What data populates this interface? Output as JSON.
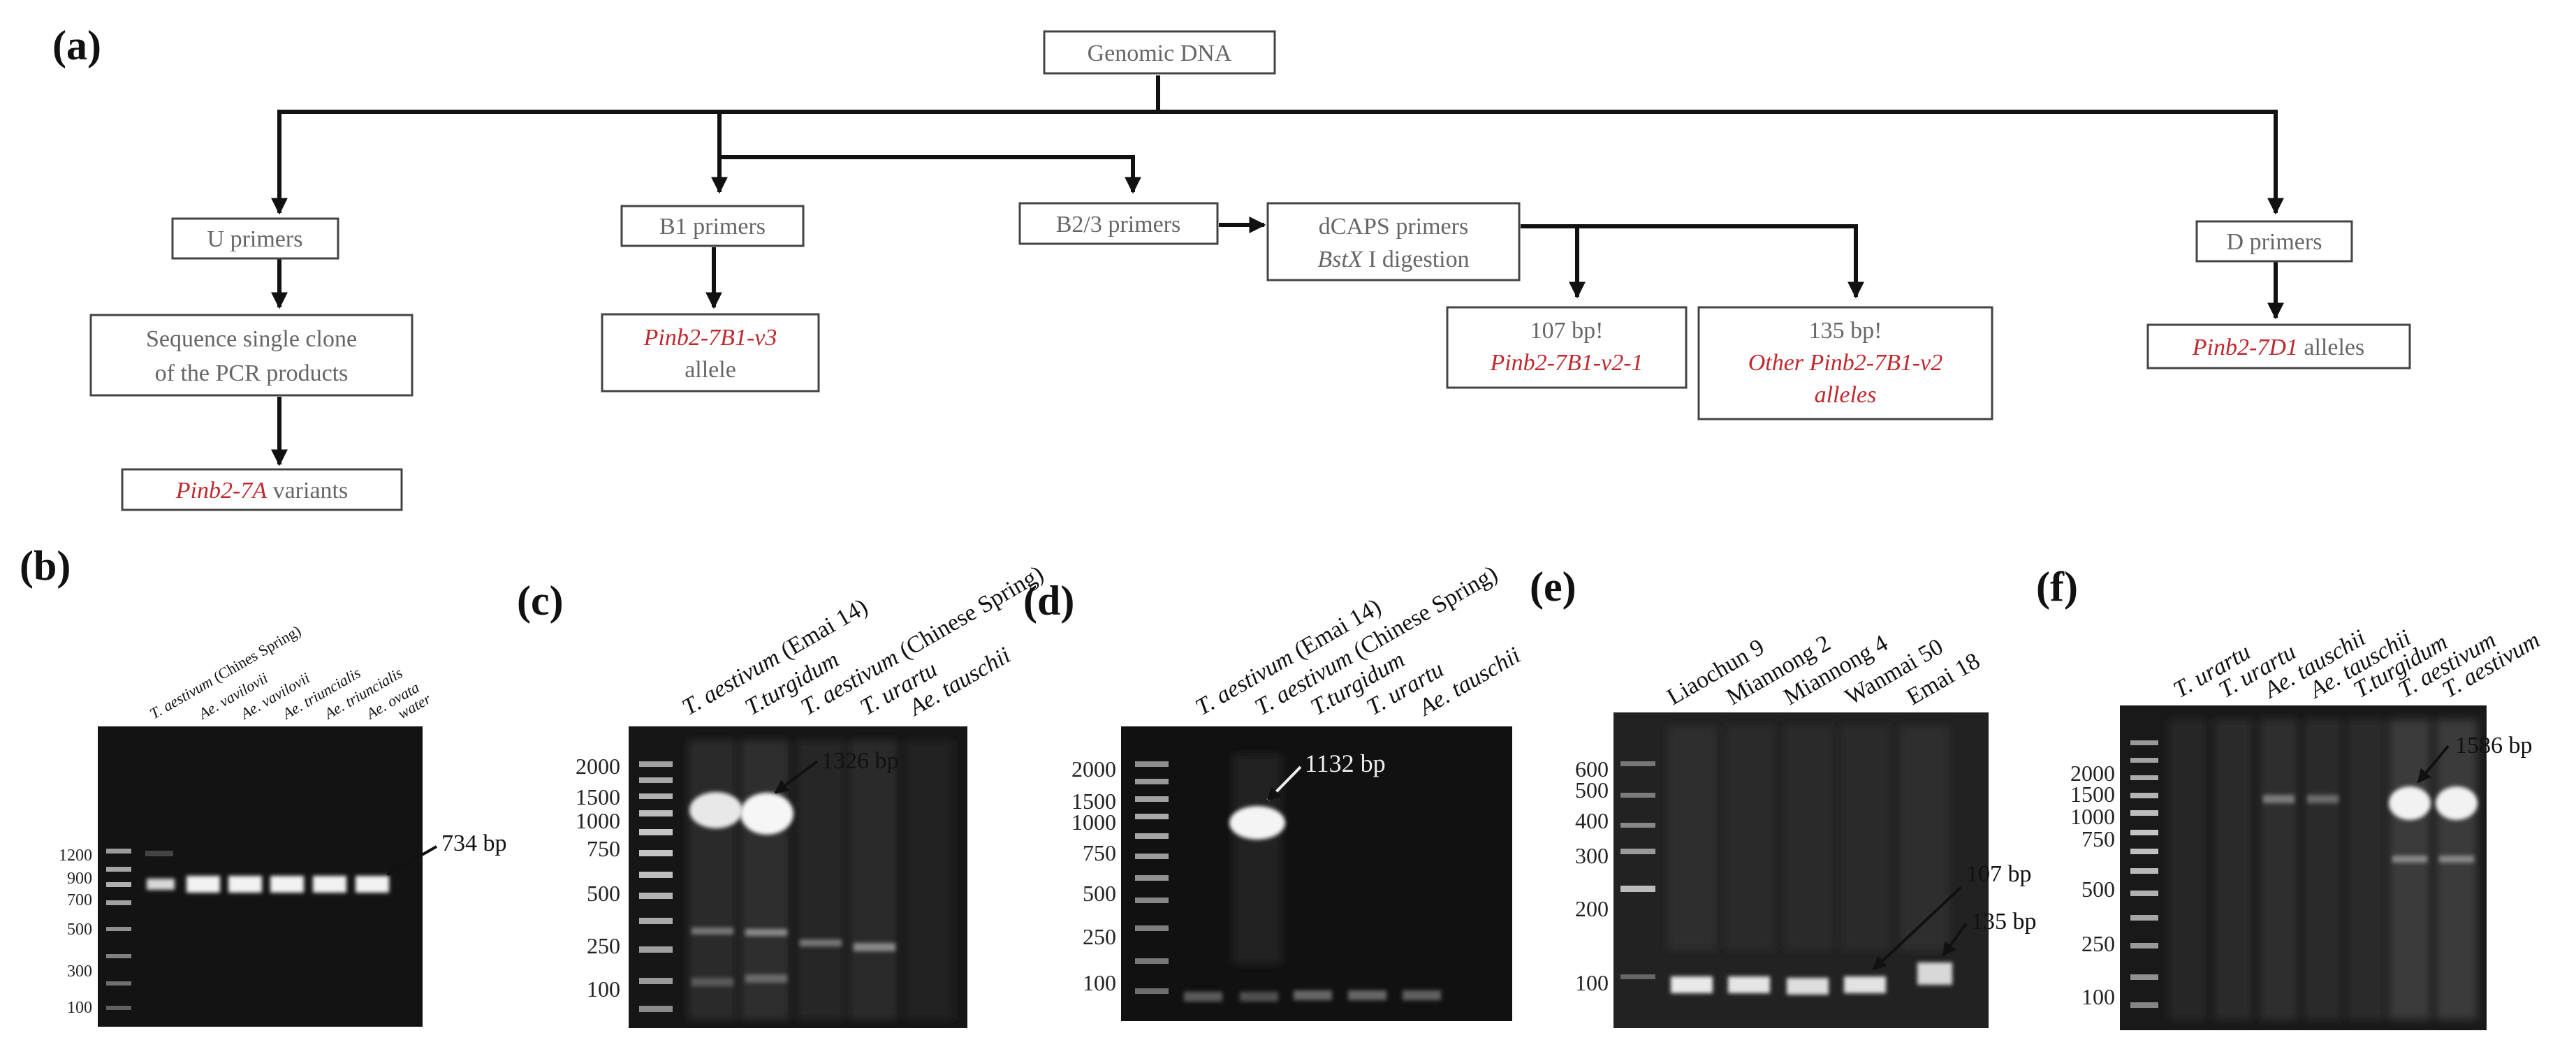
{
  "panel_a": {
    "letter": "(a)",
    "root": "Genomic DNA",
    "u_primers": "U primers",
    "sequence_line1": "Sequence single clone",
    "sequence_line2": "of the PCR products",
    "pinb27a_name": "Pinb2-7A",
    "pinb27a_rest": " variants",
    "b1_primers": "B1 primers",
    "b1_allele_name": "Pinb2-7B1-v3",
    "b1_allele_rest": "allele",
    "b23_primers": "B2/3 primers",
    "dcaps_line1": "dCAPS primers",
    "dcaps_enzyme": "BstX",
    "dcaps_rest": " I digestion",
    "r107_size": "107 bp!",
    "r107_name": "Pinb2-7B1-v2-1",
    "r135_size": "135 bp!",
    "r135_line1": "Other Pinb2-7B1-v2",
    "r135_line2": "alleles",
    "d_primers": "D primers",
    "d_allele_name": "Pinb2-7D1",
    "d_allele_rest": " alleles"
  },
  "panel_b": {
    "letter": "(b)",
    "lanes": [
      {
        "species": "T. aestivum",
        "rest": " (Chines Spring)"
      },
      {
        "species": "Ae. vavilovii",
        "rest": ""
      },
      {
        "species": "Ae. vavilovii",
        "rest": ""
      },
      {
        "species": "Ae. triuncialis",
        "rest": ""
      },
      {
        "species": "Ae. triuncialis",
        "rest": ""
      },
      {
        "species": "Ae. ovata",
        "rest": ""
      },
      {
        "species": "",
        "rest": "water"
      }
    ],
    "ladder": [
      "1200",
      "900",
      "700",
      "500",
      "300",
      "100"
    ],
    "annotation": "734 bp"
  },
  "panel_c": {
    "letter": "(c)",
    "lanes": [
      {
        "species": "T. aestivum",
        "rest": " (Emai 14)"
      },
      {
        "species": "T.turgidum",
        "rest": ""
      },
      {
        "species": "T. aestivum",
        "rest": " (Chinese Spring)"
      },
      {
        "species": "T. urartu",
        "rest": ""
      },
      {
        "species": "Ae. tauschii",
        "rest": ""
      }
    ],
    "ladder": [
      "2000",
      "1500",
      "1000",
      "750",
      "500",
      "250",
      "100"
    ],
    "annotation": "1326 bp"
  },
  "panel_d": {
    "letter": "(d)",
    "lanes": [
      {
        "species": "T. aestivum",
        "rest": " (Emai 14)"
      },
      {
        "species": "T. aestivum",
        "rest": " (Chinese Spring)"
      },
      {
        "species": "T.turgidum",
        "rest": ""
      },
      {
        "species": "T. urartu",
        "rest": ""
      },
      {
        "species": "Ae. tauschii",
        "rest": ""
      }
    ],
    "ladder": [
      "2000",
      "1500",
      "1000",
      "750",
      "500",
      "250",
      "100"
    ],
    "annotation": "1132 bp"
  },
  "panel_e": {
    "letter": "(e)",
    "lanes": [
      "Liaochun 9",
      "Miannong 2",
      "Miannong 4",
      "Wanmai 50",
      "Emai 18"
    ],
    "ladder": [
      "600",
      "500",
      "400",
      "300",
      "200",
      "100"
    ],
    "annotation_1": "107 bp",
    "annotation_2": "135 bp"
  },
  "panel_f": {
    "letter": "(f)",
    "lanes": [
      "T. urartu",
      "T. urartu",
      "Ae. tauschii",
      "Ae. tauschii",
      "T.turgidum",
      "T. aestivum",
      "T. aestivum"
    ],
    "ladder": [
      "2000",
      "1500",
      "1000",
      "750",
      "500",
      "250",
      "100"
    ],
    "annotation": "1586 bp"
  }
}
